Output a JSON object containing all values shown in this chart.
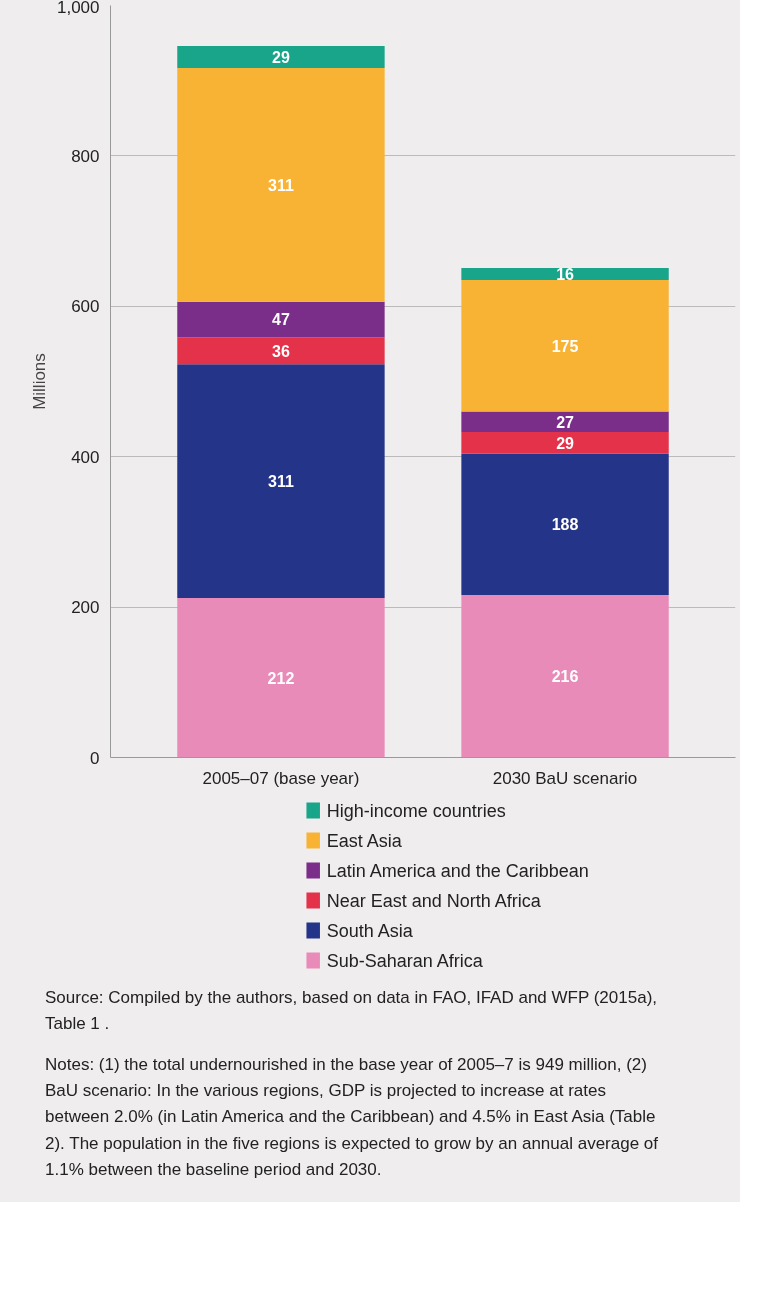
{
  "chart_data": {
    "type": "bar",
    "stacked": true,
    "ylabel": "Millions",
    "categories": [
      "2005–07 (base year)",
      "2030 BaU scenario"
    ],
    "series": [
      {
        "name": "Sub-Saharan Africa",
        "color": "#e98bb8",
        "values": [
          212,
          216
        ]
      },
      {
        "name": "South Asia",
        "color": "#243489",
        "values": [
          311,
          188
        ]
      },
      {
        "name": "Near East and North Africa",
        "color": "#e4324a",
        "values": [
          36,
          29
        ]
      },
      {
        "name": "Latin America and the Caribbean",
        "color": "#7b2d8a",
        "values": [
          47,
          27
        ]
      },
      {
        "name": "East Asia",
        "color": "#f8b334",
        "values": [
          311,
          175
        ]
      },
      {
        "name": "High-income countries",
        "color": "#18a58a",
        "values": [
          29,
          16
        ]
      }
    ],
    "ylim": [
      0,
      1000
    ],
    "yticks": [
      0,
      200,
      400,
      600,
      800,
      {
        "value": 1000,
        "label": "1,000"
      }
    ],
    "grid": "y",
    "legend": "bottom",
    "data_labels": true,
    "annotations": [
      "Source: Compiled by the authors, based on data in FAO, IFAD and WFP (2015a), Table 1 .",
      "Notes: (1) the total undernourished in the base year of 2005–7 is 949 million, (2) BaU scenario: In the various regions, GDP is projected to increase at rates between 2.0% (in Latin America and the Caribbean) and 4.5% in East Asia (Table 2). The population in the five regions is expected to grow by an annual average of 1.1% between the baseline period and 2030."
    ]
  }
}
